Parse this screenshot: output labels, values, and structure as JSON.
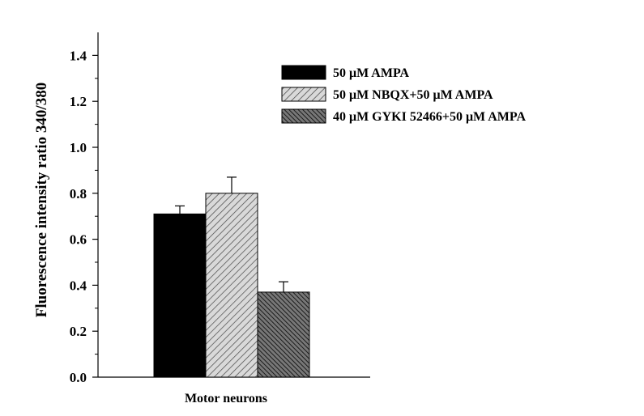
{
  "chart_data": {
    "type": "bar",
    "categories": [
      "Motor neurons"
    ],
    "series": [
      {
        "name": "50 μM AMPA",
        "values": [
          0.71
        ],
        "error": [
          0.035
        ],
        "fill": "solid-black"
      },
      {
        "name": "50 μM NBQX+50 μM AMPA",
        "values": [
          0.8
        ],
        "error": [
          0.07
        ],
        "fill": "light-hatch"
      },
      {
        "name": "40 μM GYKI 52466+50 μM AMPA",
        "values": [
          0.37
        ],
        "error": [
          0.045
        ],
        "fill": "dark-hatch"
      }
    ],
    "title": "",
    "xlabel": "Motor neurons",
    "ylabel": "Fluorescence intensity ratio 340/380",
    "ylim": [
      0,
      1.5
    ],
    "yticks": [
      "0.0",
      "0.2",
      "0.4",
      "0.6",
      "0.8",
      "1.0",
      "1.2",
      "1.4"
    ],
    "legend_position": "top-right",
    "grid": false,
    "colors": {
      "bar1": "#000000",
      "bar2": "#c8c8c8",
      "bar3": "#555555",
      "axis": "#000000"
    }
  }
}
